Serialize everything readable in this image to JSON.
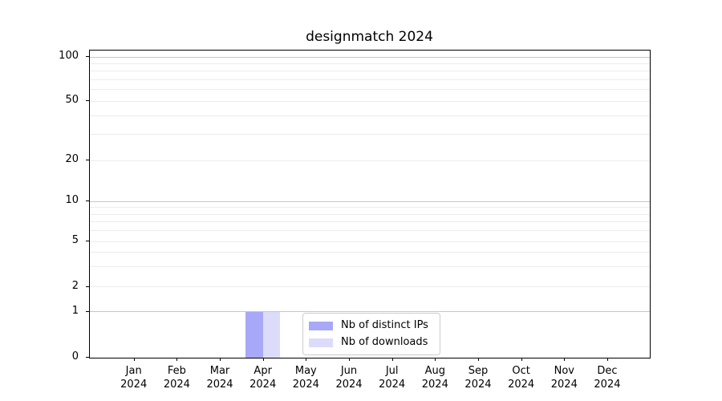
{
  "title": "designmatch 2024",
  "colors": {
    "bar_distinct_ips": "#a8a8f8",
    "bar_downloads": "#dcdcfa",
    "grid_major": "#c7c7c7",
    "grid_minor": "#ececec",
    "spine": "#000000",
    "legend_border": "#cccccc",
    "background": "#ffffff"
  },
  "chart_data": {
    "type": "bar",
    "title": "designmatch 2024",
    "categories": [
      "Jan 2024",
      "Feb 2024",
      "Mar 2024",
      "Apr 2024",
      "May 2024",
      "Jun 2024",
      "Jul 2024",
      "Aug 2024",
      "Sep 2024",
      "Oct 2024",
      "Nov 2024",
      "Dec 2024"
    ],
    "series": [
      {
        "name": "Nb of distinct IPs",
        "values": [
          0,
          0,
          0,
          1,
          0,
          0,
          0,
          0,
          0,
          0,
          0,
          0
        ],
        "color": "#a8a8f8"
      },
      {
        "name": "Nb of downloads",
        "values": [
          0,
          0,
          0,
          1,
          0,
          0,
          0,
          0,
          0,
          0,
          0,
          0
        ],
        "color": "#dcdcfa"
      }
    ],
    "xlabel": "",
    "ylabel": "",
    "yscale": "asinh-like log (linear 0-1, log above 1)",
    "ylim": [
      0,
      113
    ],
    "y_ticks": [
      0,
      1,
      2,
      5,
      10,
      20,
      50,
      100
    ],
    "y_major_gridlines": [
      1,
      10,
      100
    ],
    "y_minor_gridlines": [
      2,
      3,
      4,
      5,
      6,
      7,
      8,
      9,
      20,
      30,
      40,
      50,
      60,
      70,
      80,
      90
    ],
    "grid": "horizontal, major and minor",
    "legend_position": "inside lower center-right"
  },
  "legend": {
    "items": [
      {
        "label": "Nb of distinct IPs",
        "color": "#a8a8f8"
      },
      {
        "label": "Nb of downloads",
        "color": "#dcdcfa"
      }
    ]
  }
}
